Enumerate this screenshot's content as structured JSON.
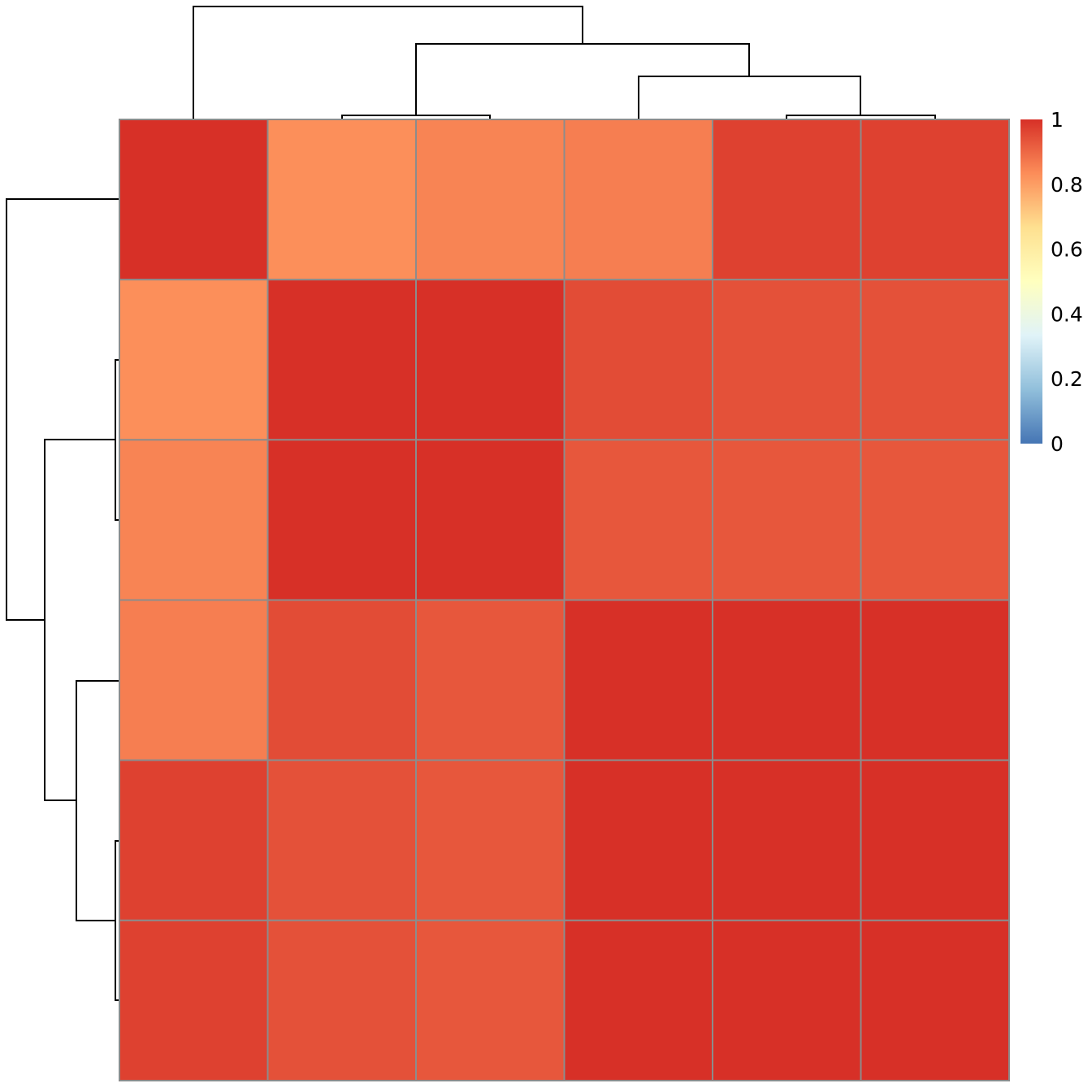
{
  "chart_data": {
    "type": "heatmap",
    "title": "",
    "xlabel": "",
    "ylabel": "",
    "values": [
      [
        1.0,
        0.83,
        0.85,
        0.86,
        0.97,
        0.97
      ],
      [
        0.83,
        1.0,
        1.0,
        0.95,
        0.94,
        0.94
      ],
      [
        0.85,
        1.0,
        1.0,
        0.93,
        0.93,
        0.93
      ],
      [
        0.86,
        0.95,
        0.93,
        1.0,
        1.0,
        1.0
      ],
      [
        0.97,
        0.94,
        0.93,
        1.0,
        1.0,
        1.0
      ],
      [
        0.97,
        0.94,
        0.93,
        1.0,
        1.0,
        1.0
      ]
    ],
    "row_labels": [],
    "col_labels": [],
    "color_scale": {
      "min": 0,
      "max": 1,
      "colors": [
        "#4575b4",
        "#91bfdb",
        "#e0f3f8",
        "#ffffbf",
        "#fee090",
        "#fc8d59",
        "#d73027"
      ]
    },
    "legend": {
      "position": "right",
      "ticks": [
        "0",
        "0.2",
        "0.4",
        "0.6",
        "0.8",
        "1"
      ]
    },
    "column_dendrogram": "top",
    "row_dendrogram": "left"
  }
}
